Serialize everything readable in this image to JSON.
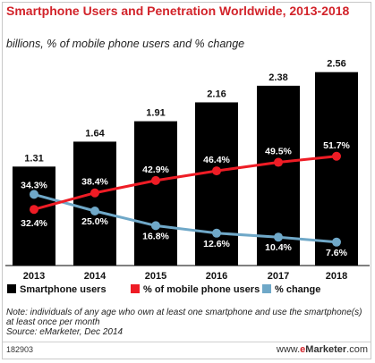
{
  "chart_data": {
    "type": "bar",
    "title": "Smartphone Users and Penetration Worldwide, 2013-2018",
    "subtitle": "billions, % of mobile phone users and % change",
    "categories": [
      "2013",
      "2014",
      "2015",
      "2016",
      "2017",
      "2018"
    ],
    "series": [
      {
        "name": "Smartphone users",
        "type": "bar",
        "color": "#000000",
        "values": [
          1.31,
          1.64,
          1.91,
          2.16,
          2.38,
          2.56
        ],
        "labels": [
          "1.31",
          "1.64",
          "1.91",
          "2.16",
          "2.38",
          "2.56"
        ]
      },
      {
        "name": "% of mobile phone users",
        "type": "line",
        "color": "#ee1c25",
        "values": [
          32.4,
          38.4,
          42.9,
          46.4,
          49.5,
          51.7
        ],
        "labels": [
          "32.4%",
          "38.4%",
          "42.9%",
          "46.4%",
          "49.5%",
          "51.7%"
        ]
      },
      {
        "name": "% change",
        "type": "line",
        "color": "#6fa8c8",
        "values": [
          34.3,
          25.0,
          16.8,
          12.6,
          10.4,
          7.6
        ],
        "labels": [
          "34.3%",
          "25.0%",
          "16.8%",
          "12.6%",
          "10.4%",
          "7.6%"
        ]
      }
    ],
    "legend_position": "bottom"
  },
  "note": "Note: individuals of any age who own at least one smartphone and use the smartphone(s) at least once per month",
  "source": "Source: eMarketer, Dec 2014",
  "chart_id": "182903",
  "brand": {
    "prefix": "www.",
    "e": "e",
    "rest": "Marketer",
    "suffix": ".com"
  }
}
